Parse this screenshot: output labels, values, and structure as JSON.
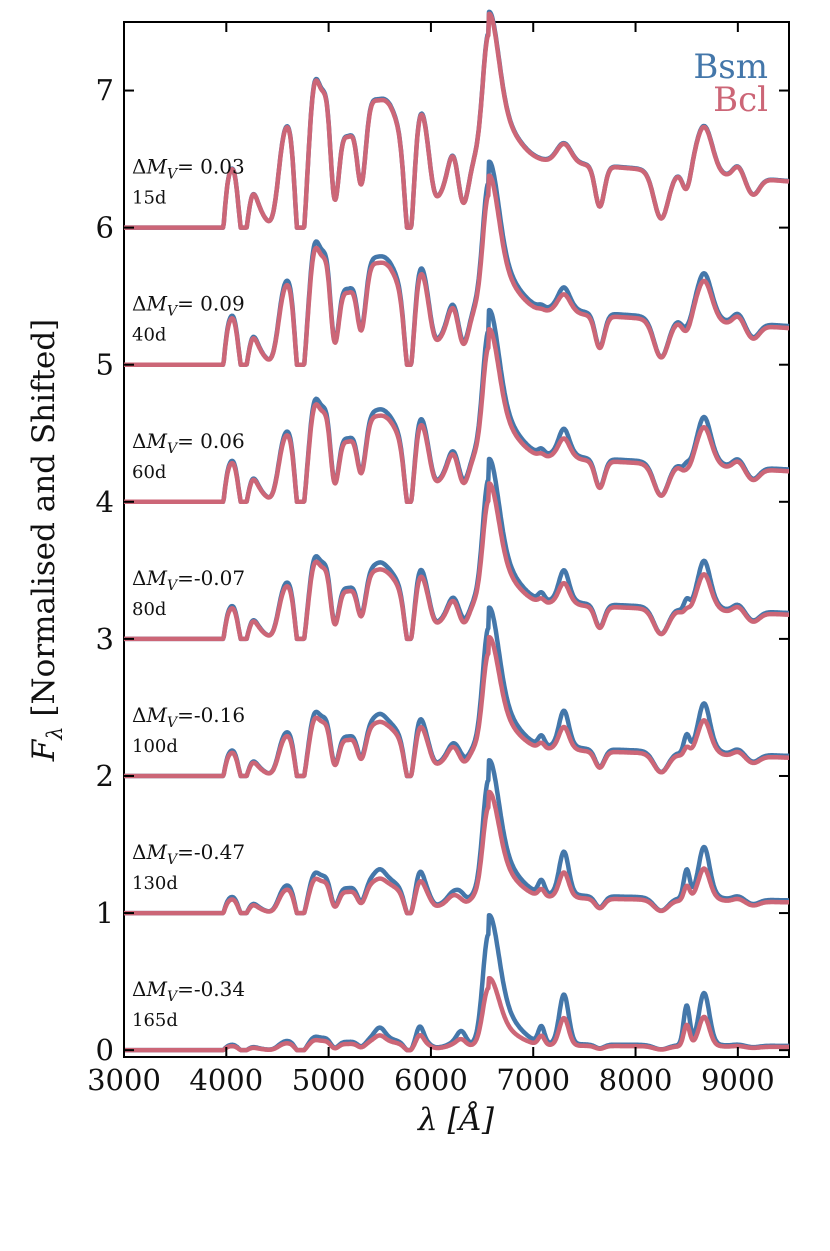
{
  "chart_data": {
    "type": "line",
    "title": "",
    "xlabel": "λ [Å]",
    "ylabel": "F_λ [Normalised and Shifted]",
    "ylabel_parts": {
      "symbol": "F",
      "subscript": "λ",
      "rest": " [Normalised and Shifted]"
    },
    "xlim": [
      3000,
      9500
    ],
    "ylim": [
      -0.05,
      7.5
    ],
    "xticks": [
      3000,
      4000,
      5000,
      6000,
      7000,
      8000,
      9000
    ],
    "xtick_labels": [
      "3000",
      "4000",
      "5000",
      "6000",
      "7000",
      "8000",
      "9000"
    ],
    "yticks": [
      0,
      1,
      2,
      3,
      4,
      5,
      6,
      7
    ],
    "ytick_labels": [
      "0",
      "1",
      "2",
      "3",
      "4",
      "5",
      "6",
      "7"
    ],
    "grid": false,
    "legend": {
      "position": "top-right",
      "entries": [
        {
          "name": "Bsm",
          "color": "#4477AA"
        },
        {
          "name": "Bcl",
          "color": "#CC6677"
        }
      ]
    },
    "series_colors": {
      "Bsm": "#4477AA",
      "Bcl": "#CC6677"
    },
    "epochs": [
      {
        "offset": 6,
        "day_label": "15d",
        "dm_prefix": "ΔM",
        "dm_sub": "V",
        "dm_value": "= 0.03",
        "bsm_scale": 1.0,
        "bcl_scale": 0.99,
        "bsm_peak": 1.0,
        "bcl_peak": 0.99,
        "late": 0.0
      },
      {
        "offset": 5,
        "day_label": "40d",
        "dm_prefix": "ΔM",
        "dm_sub": "V",
        "dm_value": "= 0.09",
        "bsm_scale": 0.95,
        "bcl_scale": 0.9,
        "bsm_peak": 1.0,
        "bcl_peak": 0.92,
        "late": 0.15
      },
      {
        "offset": 4,
        "day_label": "60d",
        "dm_prefix": "ΔM",
        "dm_sub": "V",
        "dm_value": "= 0.06",
        "bsm_scale": 0.93,
        "bcl_scale": 0.88,
        "bsm_peak": 1.0,
        "bcl_peak": 0.88,
        "late": 0.3
      },
      {
        "offset": 3,
        "day_label": "80d",
        "dm_prefix": "ΔM",
        "dm_sub": "V",
        "dm_value": "=-0.07",
        "bsm_scale": 0.9,
        "bcl_scale": 0.84,
        "bsm_peak": 1.0,
        "bcl_peak": 0.84,
        "late": 0.45
      },
      {
        "offset": 2,
        "day_label": "100d",
        "dm_prefix": "ΔM",
        "dm_sub": "V",
        "dm_value": "=-0.16",
        "bsm_scale": 0.88,
        "bcl_scale": 0.8,
        "bsm_peak": 1.0,
        "bcl_peak": 0.8,
        "late": 0.6
      },
      {
        "offset": 1,
        "day_label": "130d",
        "dm_prefix": "ΔM",
        "dm_sub": "V",
        "dm_value": "=-0.47",
        "bsm_scale": 0.85,
        "bcl_scale": 0.72,
        "bsm_peak": 1.0,
        "bcl_peak": 0.78,
        "late": 0.8
      },
      {
        "offset": 0,
        "day_label": "165d",
        "dm_prefix": "ΔM",
        "dm_sub": "V",
        "dm_value": "=-0.34",
        "bsm_scale": 0.6,
        "bcl_scale": 0.45,
        "bsm_peak": 1.0,
        "bcl_peak": 0.52,
        "late": 1.0
      }
    ]
  }
}
